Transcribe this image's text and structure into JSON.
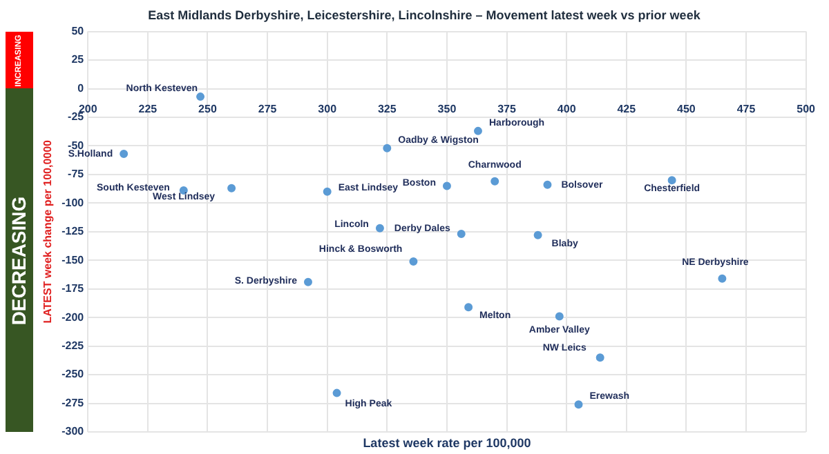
{
  "chart_data": {
    "type": "scatter",
    "title": "East Midlands Derbyshire, Leicestershire, Lincolnshire – Movement latest week vs prior week",
    "xlabel": "Latest week rate per 100,000",
    "ylabel": "LATEST week change per 100,0000",
    "x": [
      247,
      215,
      325,
      363,
      240,
      260,
      300,
      350,
      370,
      392,
      444,
      322,
      356,
      388,
      336,
      292,
      465,
      359,
      397,
      414,
      405,
      304
    ],
    "series": [
      {
        "color": "#5b9bd5",
        "values": [
          -7,
          -57,
          -52,
          -37,
          -89,
          -87,
          -90,
          -85,
          -81,
          -84,
          -80,
          -122,
          -127,
          -128,
          -151,
          -169,
          -166,
          -191,
          -199,
          -235,
          -276,
          -266
        ]
      }
    ],
    "xlim": [
      200,
      500
    ],
    "xticks": [
      200,
      225,
      250,
      275,
      300,
      325,
      350,
      375,
      400,
      425,
      450,
      475,
      500
    ],
    "ylim": [
      -300,
      50
    ],
    "yticks": [
      -300,
      -275,
      -250,
      -225,
      -200,
      -175,
      -150,
      -125,
      -100,
      -75,
      -50,
      -25,
      0,
      25,
      50
    ],
    "grid": true,
    "marker": "circle",
    "annotations": [
      "INCREASING",
      "DECREASING",
      {
        "text": "North Kesteven",
        "x": 247,
        "y": -7
      },
      {
        "text": "S.Holland",
        "x": 215,
        "y": -57
      },
      {
        "text": "Oadby & Wigston",
        "x": 325,
        "y": -52
      },
      {
        "text": "Harborough",
        "x": 363,
        "y": -37
      },
      {
        "text": "South Kesteven",
        "x": 240,
        "y": -89
      },
      {
        "text": "West Lindsey",
        "x": 260,
        "y": -87
      },
      {
        "text": "East Lindsey",
        "x": 300,
        "y": -90
      },
      {
        "text": "Boston",
        "x": 350,
        "y": -85
      },
      {
        "text": "Charnwood",
        "x": 370,
        "y": -81
      },
      {
        "text": "Bolsover",
        "x": 392,
        "y": -84
      },
      {
        "text": "Chesterfield",
        "x": 444,
        "y": -80
      },
      {
        "text": "Lincoln",
        "x": 322,
        "y": -122
      },
      {
        "text": "Derby Dales",
        "x": 356,
        "y": -127
      },
      {
        "text": "Blaby",
        "x": 388,
        "y": -128
      },
      {
        "text": "Hinck & Bosworth",
        "x": 336,
        "y": -151
      },
      {
        "text": "S. Derbyshire",
        "x": 292,
        "y": -169
      },
      {
        "text": "NE Derbyshire",
        "x": 465,
        "y": -166
      },
      {
        "text": "Melton",
        "x": 359,
        "y": -191
      },
      {
        "text": "Amber Valley",
        "x": 397,
        "y": -199
      },
      {
        "text": "NW Leics",
        "x": 414,
        "y": -235
      },
      {
        "text": "Erewash",
        "x": 405,
        "y": -276
      },
      {
        "text": "High Peak",
        "x": 304,
        "y": -266
      }
    ]
  }
}
